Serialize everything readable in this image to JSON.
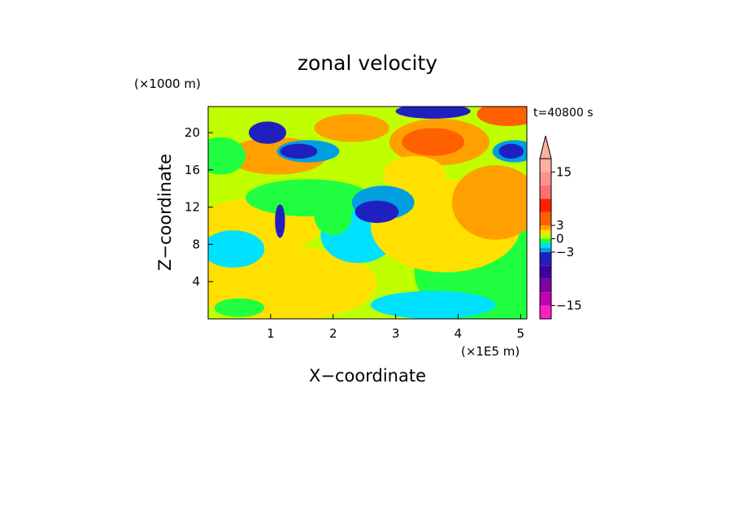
{
  "chart_data": {
    "type": "heatmap",
    "title": "zonal velocity",
    "xlabel": "X−coordinate",
    "ylabel": "Z−coordinate",
    "x_unit": "(×1E5 m)",
    "y_unit": "(×1000 m)",
    "time_label": "t=40800 s",
    "x_ticks": [
      "1",
      "2",
      "3",
      "4",
      "5"
    ],
    "y_ticks": [
      "4",
      "8",
      "12",
      "16",
      "20"
    ],
    "xlim": [
      0,
      5.1
    ],
    "ylim": [
      0,
      22.8
    ],
    "colorbar": {
      "levels": [
        -18,
        -15,
        -12,
        -9,
        -6,
        -3,
        -2,
        -1,
        0,
        1,
        2,
        3,
        6,
        9,
        12,
        15,
        18
      ],
      "tick_labels": [
        "15",
        "3",
        "0",
        "−3",
        "−15"
      ],
      "colors": [
        "#ff20c0",
        "#c000b0",
        "#8000a0",
        "#4000a0",
        "#2020c0",
        "#00a0e0",
        "#00e0ff",
        "#20ff40",
        "#c0ff00",
        "#ffe000",
        "#ffa000",
        "#ff6000",
        "#ff2000",
        "#ff7070",
        "#ff9090",
        "#ffb0a0"
      ],
      "extend": "max"
    }
  }
}
